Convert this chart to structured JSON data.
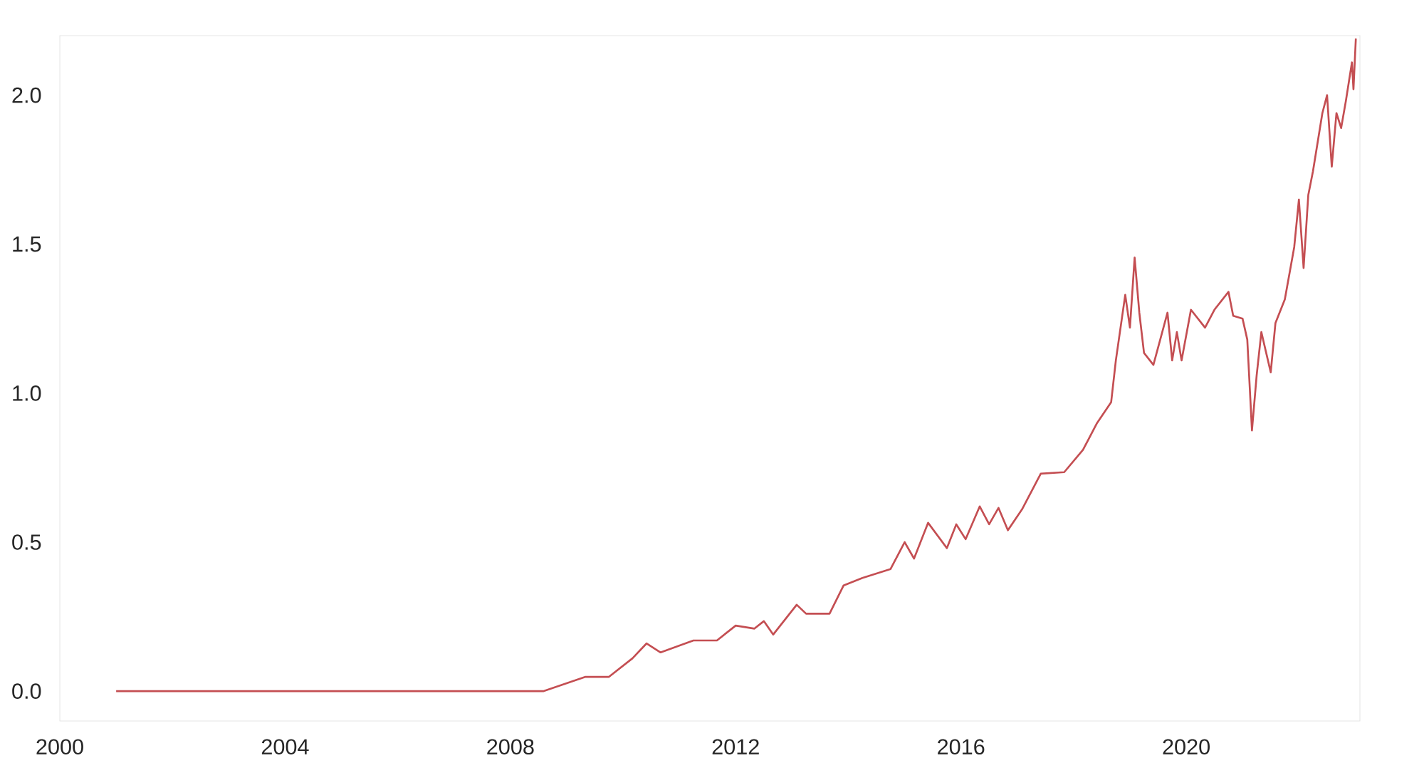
{
  "chart_data": {
    "type": "line",
    "x": [
      "2001-01",
      "2008-08",
      "2009-05",
      "2009-10",
      "2010-03",
      "2010-06",
      "2010-09",
      "2011-04",
      "2011-09",
      "2012-01",
      "2012-05",
      "2012-07",
      "2012-09",
      "2013-02",
      "2013-04",
      "2013-09",
      "2013-12",
      "2014-04",
      "2014-10",
      "2015-01",
      "2015-03",
      "2015-06",
      "2015-10",
      "2015-12",
      "2016-02",
      "2016-05",
      "2016-07",
      "2016-09",
      "2016-11",
      "2017-02",
      "2017-06",
      "2017-11",
      "2018-03",
      "2018-06",
      "2018-09",
      "2018-10",
      "2018-12",
      "2019-01",
      "2019-02",
      "2019-03",
      "2019-04",
      "2019-06",
      "2019-09",
      "2019-10",
      "2019-11",
      "2019-12",
      "2020-02",
      "2020-05",
      "2020-07",
      "2020-10",
      "2020-11",
      "2021-01",
      "2021-02",
      "2021-03",
      "2021-04",
      "2021-05",
      "2021-07",
      "2021-08",
      "2021-10",
      "2021-12",
      "2022-01",
      "2022-02",
      "2022-03",
      "2022-04",
      "2022-06",
      "2022-07",
      "2022-08",
      "2022-09",
      "2022-10",
      "2022-11",
      "2022-12-10",
      "2022-12-20",
      "2023-01-05"
    ],
    "series": [
      {
        "color": "#c44e52",
        "values": [
          0,
          0,
          0.048,
          0.048,
          0.11,
          0.16,
          0.13,
          0.17,
          0.17,
          0.22,
          0.21,
          0.235,
          0.19,
          0.29,
          0.26,
          0.26,
          0.355,
          0.38,
          0.41,
          0.5,
          0.445,
          0.565,
          0.48,
          0.56,
          0.51,
          0.62,
          0.56,
          0.615,
          0.54,
          0.61,
          0.73,
          0.735,
          0.81,
          0.9,
          0.97,
          1.11,
          1.33,
          1.22,
          1.455,
          1.27,
          1.135,
          1.095,
          1.27,
          1.11,
          1.205,
          1.11,
          1.28,
          1.22,
          1.28,
          1.34,
          1.26,
          1.25,
          1.18,
          0.875,
          1.06,
          1.205,
          1.07,
          1.235,
          1.315,
          1.49,
          1.65,
          1.42,
          1.665,
          1.745,
          1.94,
          2.0,
          1.76,
          1.94,
          1.89,
          1.98,
          2.11,
          2.02,
          2.19
        ]
      }
    ],
    "xlim": [
      "2000",
      "2023-02"
    ],
    "ylim": [
      -0.1,
      2.2
    ],
    "xticks": [
      "2000",
      "2004",
      "2008",
      "2012",
      "2016",
      "2020"
    ],
    "yticks": [
      {
        "value": 0,
        "label": "0.0"
      },
      {
        "value": 0.5,
        "label": "0.5"
      },
      {
        "value": 1,
        "label": "1.0"
      },
      {
        "value": 1.5,
        "label": "1.5"
      },
      {
        "value": 2,
        "label": "2.0"
      }
    ],
    "grid": false,
    "legend": false,
    "marker": "none",
    "line_style": "solid"
  }
}
